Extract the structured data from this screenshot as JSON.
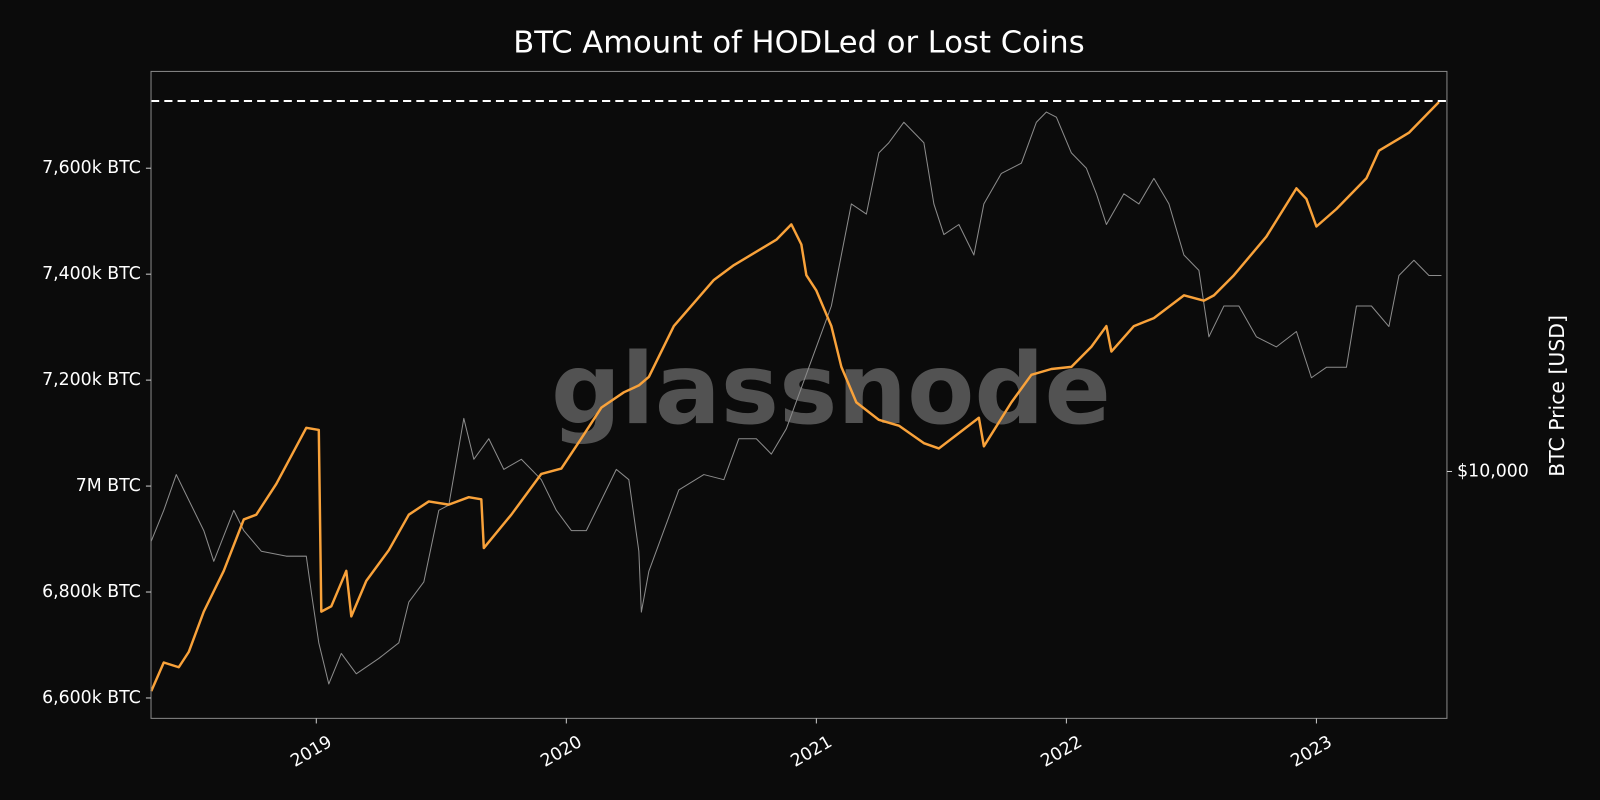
{
  "chart_data": {
    "type": "line",
    "title": "BTC Amount of HODLed or Lost Coins",
    "watermark": "glassnode",
    "y2label": "BTC Price [USD]",
    "xlim": [
      2018.339,
      2023.522
    ],
    "xticks": [
      2019,
      2020,
      2021,
      2022,
      2023
    ],
    "ylim": [
      6561500,
      7782700
    ],
    "yticks": [
      {
        "value": 6600000,
        "label": "6,600k BTC"
      },
      {
        "value": 6800000,
        "label": "6,800k BTC"
      },
      {
        "value": 7000000,
        "label": "7M BTC"
      },
      {
        "value": 7200000,
        "label": "7,200k BTC"
      },
      {
        "value": 7400000,
        "label": "7,400k BTC"
      },
      {
        "value": 7600000,
        "label": "7,600k BTC"
      }
    ],
    "y2lim": [
      2748,
      81100
    ],
    "y2scale": "log",
    "y2ticks": [
      {
        "value": 10000,
        "label": "$10,000"
      }
    ],
    "reference_line": {
      "value": 7726900,
      "color": "#ffffff",
      "dashed": true
    },
    "grid": false,
    "series": [
      {
        "color": "#8c8c8c",
        "axis": "y2",
        "x": [
          2018.34,
          2018.39,
          2018.44,
          2018.49,
          2018.55,
          2018.59,
          2018.67,
          2018.71,
          2018.78,
          2018.88,
          2018.96,
          2018.98,
          2019.01,
          2019.05,
          2019.1,
          2019.16,
          2019.25,
          2019.33,
          2019.37,
          2019.43,
          2019.49,
          2019.53,
          2019.59,
          2019.63,
          2019.69,
          2019.75,
          2019.82,
          2019.9,
          2019.96,
          2020.02,
          2020.08,
          2020.14,
          2020.2,
          2020.25,
          2020.29,
          2020.3,
          2020.33,
          2020.39,
          2020.45,
          2020.55,
          2020.63,
          2020.69,
          2020.76,
          2020.82,
          2020.88,
          2020.94,
          2021.0,
          2021.06,
          2021.1,
          2021.14,
          2021.2,
          2021.25,
          2021.29,
          2021.35,
          2021.39,
          2021.43,
          2021.47,
          2021.51,
          2021.57,
          2021.63,
          2021.67,
          2021.74,
          2021.82,
          2021.88,
          2021.92,
          2021.96,
          2022.02,
          2022.08,
          2022.12,
          2022.16,
          2022.23,
          2022.29,
          2022.35,
          2022.41,
          2022.47,
          2022.53,
          2022.57,
          2022.63,
          2022.69,
          2022.76,
          2022.84,
          2022.92,
          2022.98,
          2023.04,
          2023.12,
          2023.16,
          2023.22,
          2023.29,
          2023.33,
          2023.39,
          2023.45,
          2023.5
        ],
        "values": [
          6950,
          8160,
          9840,
          8610,
          7340,
          6250,
          8160,
          7340,
          6590,
          6420,
          6420,
          5320,
          4080,
          3290,
          3860,
          3470,
          3760,
          4080,
          5050,
          5610,
          8160,
          8390,
          13200,
          10660,
          11870,
          10110,
          10660,
          9580,
          8160,
          7340,
          7340,
          8610,
          10110,
          9580,
          6590,
          4790,
          5930,
          7340,
          9080,
          9840,
          9580,
          11870,
          11870,
          10950,
          12510,
          15490,
          19190,
          23770,
          31040,
          40550,
          38450,
          52950,
          55850,
          62170,
          58910,
          55850,
          40550,
          34540,
          36410,
          31040,
          40550,
          47560,
          50190,
          62170,
          65580,
          63830,
          52950,
          48860,
          42760,
          36410,
          42760,
          40550,
          46340,
          40550,
          31040,
          28640,
          20230,
          23770,
          23770,
          20230,
          19190,
          20800,
          16330,
          17250,
          17250,
          23770,
          23770,
          21350,
          27880,
          30200,
          27880,
          27880
        ]
      },
      {
        "color": "#f9a23a",
        "x": [
          2018.34,
          2018.39,
          2018.45,
          2018.49,
          2018.55,
          2018.63,
          2018.71,
          2018.76,
          2018.84,
          2018.96,
          2019.01,
          2019.02,
          2019.06,
          2019.12,
          2019.14,
          2019.2,
          2019.29,
          2019.37,
          2019.45,
          2019.53,
          2019.61,
          2019.66,
          2019.67,
          2019.78,
          2019.9,
          2019.98,
          2020.06,
          2020.14,
          2020.23,
          2020.29,
          2020.33,
          2020.43,
          2020.59,
          2020.67,
          2020.84,
          2020.9,
          2020.94,
          2020.96,
          2021.0,
          2021.06,
          2021.1,
          2021.16,
          2021.25,
          2021.33,
          2021.43,
          2021.49,
          2021.57,
          2021.65,
          2021.67,
          2021.78,
          2021.86,
          2021.94,
          2022.02,
          2022.1,
          2022.16,
          2022.18,
          2022.27,
          2022.35,
          2022.47,
          2022.55,
          2022.59,
          2022.67,
          2022.8,
          2022.92,
          2022.96,
          2023.0,
          2023.08,
          2023.2,
          2023.25,
          2023.37,
          2023.49
        ],
        "values": [
          6613000,
          6667000,
          6658000,
          6687000,
          6763000,
          6840000,
          6937000,
          6946000,
          7004000,
          7110000,
          7106000,
          6763000,
          6773000,
          6840000,
          6754000,
          6821000,
          6879000,
          6946000,
          6971000,
          6965000,
          6979000,
          6975000,
          6883000,
          6946000,
          7023000,
          7033000,
          7090000,
          7148000,
          7177000,
          7190000,
          7206000,
          7302000,
          7389000,
          7417000,
          7465000,
          7494000,
          7456000,
          7398000,
          7369000,
          7302000,
          7225000,
          7158000,
          7125000,
          7114000,
          7081000,
          7071000,
          7100000,
          7129000,
          7075000,
          7158000,
          7210000,
          7221000,
          7225000,
          7263000,
          7302000,
          7254000,
          7302000,
          7317000,
          7360000,
          7350000,
          7360000,
          7398000,
          7471000,
          7562000,
          7542000,
          7490000,
          7523000,
          7581000,
          7633000,
          7667000,
          7725000
        ]
      }
    ]
  }
}
